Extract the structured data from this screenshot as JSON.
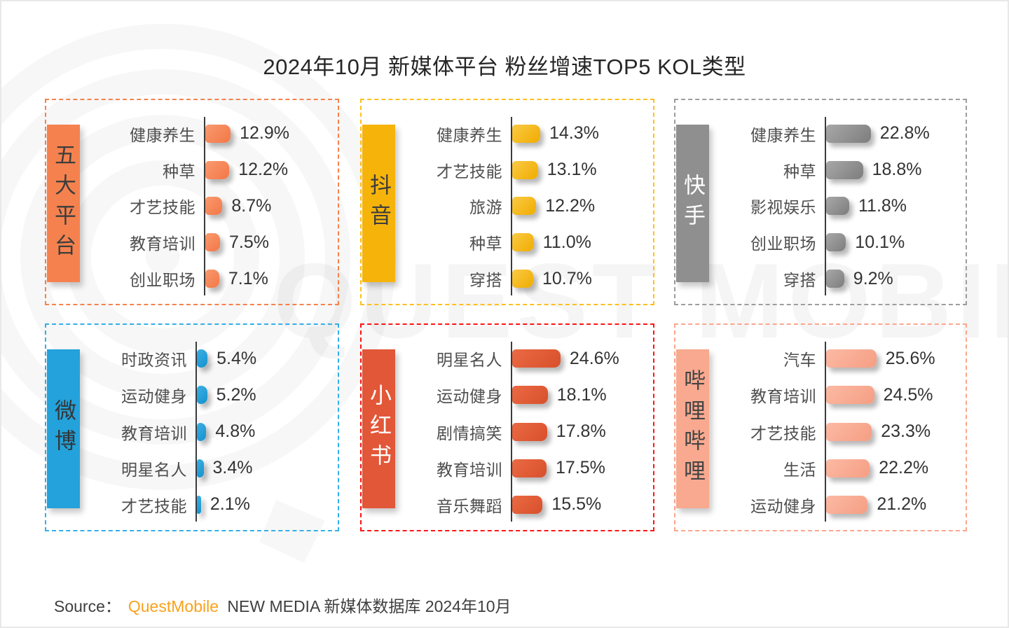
{
  "title": "2024年10月 新媒体平台 粉丝增速TOP5 KOL类型",
  "watermark": {
    "text": "QUEST MOBILE"
  },
  "source": {
    "prefix": "Source：",
    "brand": "QuestMobile",
    "brand_color": "#F9A21B",
    "suffix": " NEW MEDIA 新媒体数据库 2024年10月"
  },
  "chart_data": [
    {
      "type": "bar",
      "orientation": "horizontal",
      "platform": "五大平台",
      "categories": [
        "健康养生",
        "种草",
        "才艺技能",
        "教育培训",
        "创业职场"
      ],
      "values": [
        12.9,
        12.2,
        8.7,
        7.5,
        7.1
      ],
      "unit": "%",
      "xlim": [
        0,
        26
      ],
      "colors": {
        "block": "#F5824E",
        "bar_from": "#F89A6E",
        "bar_to": "#F47747",
        "border": "#F5824E",
        "label_text": "#3D3D3D"
      }
    },
    {
      "type": "bar",
      "orientation": "horizontal",
      "platform": "抖音",
      "categories": [
        "健康养生",
        "才艺技能",
        "旅游",
        "种草",
        "穿搭"
      ],
      "values": [
        14.3,
        13.1,
        12.2,
        11.0,
        10.7
      ],
      "unit": "%",
      "xlim": [
        0,
        26
      ],
      "colors": {
        "block": "#F6B40B",
        "bar_from": "#FACA45",
        "bar_to": "#F0AC00",
        "border": "#FFC01E",
        "label_text": "#3D3D3D"
      }
    },
    {
      "type": "bar",
      "orientation": "horizontal",
      "platform": "快手",
      "categories": [
        "健康养生",
        "种草",
        "影视娱乐",
        "创业职场",
        "穿搭"
      ],
      "values": [
        22.8,
        18.8,
        11.8,
        10.1,
        9.2
      ],
      "unit": "%",
      "xlim": [
        0,
        26
      ],
      "colors": {
        "block": "#8F8F8F",
        "bar_from": "#A8A8A8",
        "bar_to": "#7D7D7D",
        "border": "#9D9D9D",
        "label_text": "#FFFFFF"
      }
    },
    {
      "type": "bar",
      "orientation": "horizontal",
      "platform": "微博",
      "categories": [
        "时政资讯",
        "运动健身",
        "教育培训",
        "明星名人",
        "才艺技能"
      ],
      "values": [
        5.4,
        5.2,
        4.8,
        3.4,
        2.1
      ],
      "unit": "%",
      "xlim": [
        0,
        26
      ],
      "colors": {
        "block": "#23A2DB",
        "bar_from": "#3BAFE2",
        "bar_to": "#1591CF",
        "border": "#33AFE8",
        "label_text": "#343434"
      }
    },
    {
      "type": "bar",
      "orientation": "horizontal",
      "platform": "小红书",
      "categories": [
        "明星名人",
        "运动健身",
        "剧情搞笑",
        "教育培训",
        "音乐舞蹈"
      ],
      "values": [
        24.6,
        18.1,
        17.8,
        17.5,
        15.5
      ],
      "unit": "%",
      "xlim": [
        0,
        26
      ],
      "colors": {
        "block": "#E25738",
        "bar_from": "#EA6A43",
        "bar_to": "#D8502C",
        "border": "#FF1414",
        "label_text": "#FFFFFF"
      }
    },
    {
      "type": "bar",
      "orientation": "horizontal",
      "platform": "哔哩哔哩",
      "categories": [
        "汽车",
        "教育培训",
        "才艺技能",
        "生活",
        "运动健身"
      ],
      "values": [
        25.6,
        24.5,
        23.3,
        22.2,
        21.2
      ],
      "unit": "%",
      "xlim": [
        0,
        26
      ],
      "colors": {
        "block": "#F8A98F",
        "bar_from": "#FCBAA4",
        "bar_to": "#F59E83",
        "border": "#FCA68C",
        "label_text": "#444444"
      }
    }
  ]
}
